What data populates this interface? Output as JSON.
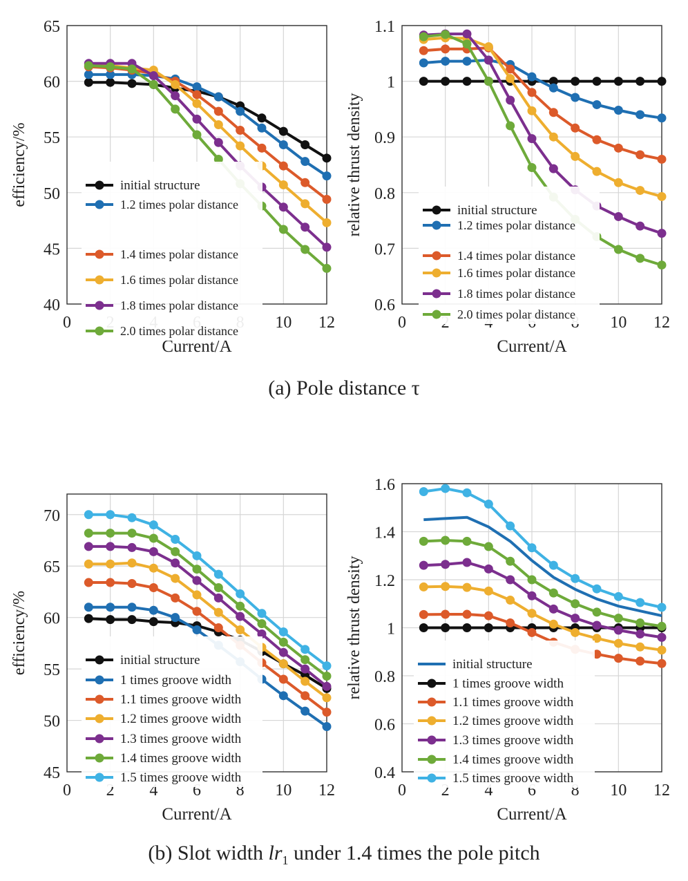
{
  "figure": {
    "caption_a": "(a) Pole distance τ",
    "caption_b_prefix": "(b) Slot width ",
    "caption_b_var": "lr",
    "caption_b_sub": "1",
    "caption_b_suffix": " under 1.4 times the pole pitch"
  },
  "colors": {
    "black": "#111111",
    "blue": "#1f6fb2",
    "orange": "#dc5a2a",
    "yellow": "#eeae2f",
    "purple": "#7c2f8e",
    "green": "#6eaa3a",
    "cyan": "#3fb2e4",
    "grid": "#d6d6d6",
    "axis": "#333333"
  },
  "chart_data": [
    {
      "type": "line",
      "panel": "a-left",
      "xlabel": "Current/A",
      "ylabel": "efficiency/%",
      "xlim": [
        0,
        12
      ],
      "ylim": [
        40,
        65
      ],
      "xticks": [
        0,
        2,
        4,
        6,
        8,
        10,
        12
      ],
      "yticks": [
        40,
        45,
        50,
        55,
        60,
        65
      ],
      "legend_position": "bottom-left",
      "x": [
        1,
        2,
        3,
        4,
        5,
        6,
        7,
        8,
        9,
        10,
        11,
        12
      ],
      "series": [
        {
          "name": "initial structure",
          "color": "black",
          "marker": true,
          "values": [
            59.9,
            59.9,
            59.8,
            59.7,
            59.4,
            59.1,
            58.6,
            57.8,
            56.7,
            55.5,
            54.3,
            53.1
          ]
        },
        {
          "name": "1.2 times polar distance",
          "color": "blue",
          "marker": true,
          "values": [
            60.6,
            60.6,
            60.6,
            60.5,
            60.2,
            59.5,
            58.6,
            57.3,
            55.8,
            54.3,
            52.8,
            51.5
          ]
        },
        {
          "name": "1.4 times polar distance",
          "color": "orange",
          "marker": true,
          "values": [
            61.3,
            61.2,
            61.0,
            60.7,
            60.0,
            58.8,
            57.3,
            55.6,
            54.0,
            52.4,
            50.9,
            49.4
          ]
        },
        {
          "name": "1.6 times polar distance",
          "color": "yellow",
          "marker": true,
          "values": [
            61.5,
            61.4,
            61.2,
            61.0,
            59.7,
            58.0,
            56.1,
            54.2,
            52.4,
            50.7,
            49.0,
            47.3
          ]
        },
        {
          "name": "1.8 times polar distance",
          "color": "purple",
          "marker": true,
          "values": [
            61.6,
            61.6,
            61.6,
            60.5,
            58.7,
            56.6,
            54.5,
            52.4,
            50.5,
            48.7,
            46.9,
            45.1
          ]
        },
        {
          "name": "2.0 times polar distance",
          "color": "green",
          "marker": true,
          "values": [
            61.4,
            61.3,
            61.1,
            59.7,
            57.5,
            55.2,
            53.0,
            50.8,
            48.8,
            46.7,
            44.9,
            43.2
          ]
        }
      ]
    },
    {
      "type": "line",
      "panel": "a-right",
      "xlabel": "Current/A",
      "ylabel": "relative thrust density",
      "xlim": [
        0,
        12
      ],
      "ylim": [
        0.6,
        1.1
      ],
      "xticks": [
        0,
        2,
        4,
        6,
        8,
        10,
        12
      ],
      "yticks": [
        0.6,
        0.7,
        0.8,
        0.9,
        1,
        1.1
      ],
      "legend_position": "bottom-left",
      "x": [
        1,
        2,
        3,
        4,
        5,
        6,
        7,
        8,
        9,
        10,
        11,
        12
      ],
      "series": [
        {
          "name": "initial structure",
          "color": "black",
          "marker": true,
          "values": [
            1.0,
            1.0,
            1.0,
            1.0,
            1.0,
            1.0,
            1.0,
            1.0,
            1.0,
            1.0,
            1.0,
            1.0
          ]
        },
        {
          "name": "1.2 times polar distance",
          "color": "blue",
          "marker": true,
          "values": [
            1.033,
            1.036,
            1.036,
            1.038,
            1.03,
            1.008,
            0.988,
            0.971,
            0.958,
            0.948,
            0.94,
            0.934
          ]
        },
        {
          "name": "1.4 times polar distance",
          "color": "orange",
          "marker": true,
          "values": [
            1.055,
            1.058,
            1.058,
            1.06,
            1.022,
            0.98,
            0.944,
            0.916,
            0.895,
            0.88,
            0.868,
            0.86
          ]
        },
        {
          "name": "1.6 times polar distance",
          "color": "yellow",
          "marker": true,
          "values": [
            1.075,
            1.078,
            1.077,
            1.062,
            1.005,
            0.947,
            0.9,
            0.865,
            0.838,
            0.818,
            0.804,
            0.793
          ]
        },
        {
          "name": "1.8 times polar distance",
          "color": "purple",
          "marker": true,
          "values": [
            1.083,
            1.085,
            1.085,
            1.038,
            0.966,
            0.897,
            0.843,
            0.805,
            0.776,
            0.757,
            0.74,
            0.727
          ]
        },
        {
          "name": "2.0 times polar distance",
          "color": "green",
          "marker": true,
          "values": [
            1.08,
            1.084,
            1.067,
            1.0,
            0.92,
            0.845,
            0.792,
            0.752,
            0.721,
            0.698,
            0.682,
            0.67
          ]
        }
      ]
    },
    {
      "type": "line",
      "panel": "b-left",
      "xlabel": "Current/A",
      "ylabel": "efficiency/%",
      "xlim": [
        0,
        12
      ],
      "ylim": [
        45,
        72
      ],
      "xticks": [
        0,
        2,
        4,
        6,
        8,
        10,
        12
      ],
      "yticks": [
        45,
        50,
        55,
        60,
        65,
        70
      ],
      "legend_position": "bottom-left",
      "x": [
        1,
        2,
        3,
        4,
        5,
        6,
        7,
        8,
        9,
        10,
        11,
        12
      ],
      "series": [
        {
          "name": "initial structure",
          "color": "black",
          "marker": true,
          "values": [
            59.9,
            59.8,
            59.8,
            59.6,
            59.5,
            59.2,
            58.6,
            57.8,
            56.7,
            55.5,
            54.4,
            53.1
          ]
        },
        {
          "name": "1 times groove width",
          "color": "blue",
          "marker": true,
          "values": [
            61.0,
            61.0,
            61.0,
            60.7,
            60.0,
            58.8,
            57.3,
            55.7,
            54.0,
            52.4,
            50.9,
            49.4
          ]
        },
        {
          "name": "1.1 times groove width",
          "color": "orange",
          "marker": true,
          "values": [
            63.4,
            63.4,
            63.3,
            62.9,
            61.9,
            60.6,
            59.0,
            57.3,
            55.6,
            54.0,
            52.4,
            50.8
          ]
        },
        {
          "name": "1.2 times groove width",
          "color": "yellow",
          "marker": true,
          "values": [
            65.2,
            65.2,
            65.3,
            64.8,
            63.8,
            62.2,
            60.5,
            58.8,
            57.1,
            55.5,
            53.8,
            52.2
          ]
        },
        {
          "name": "1.3 times groove width",
          "color": "purple",
          "marker": true,
          "values": [
            66.9,
            66.9,
            66.8,
            66.4,
            65.3,
            63.6,
            61.9,
            60.1,
            58.4,
            56.6,
            55.0,
            53.3
          ]
        },
        {
          "name": "1.4 times groove width",
          "color": "green",
          "marker": true,
          "values": [
            68.2,
            68.2,
            68.2,
            67.7,
            66.4,
            64.7,
            62.9,
            61.1,
            59.4,
            57.6,
            55.9,
            54.3
          ]
        },
        {
          "name": "1.5 times groove width",
          "color": "cyan",
          "marker": true,
          "values": [
            70.0,
            70.0,
            69.7,
            69.0,
            67.6,
            66.0,
            64.2,
            62.3,
            60.4,
            58.6,
            56.9,
            55.3
          ]
        }
      ]
    },
    {
      "type": "line",
      "panel": "b-right",
      "xlabel": "Current/A",
      "ylabel": "relative thrust density",
      "xlim": [
        0,
        12
      ],
      "ylim": [
        0.4,
        1.6
      ],
      "xticks": [
        0,
        2,
        4,
        6,
        8,
        10,
        12
      ],
      "yticks": [
        0.4,
        0.6,
        0.8,
        1,
        1.2,
        1.4,
        1.6
      ],
      "legend_position": "bottom-left",
      "x": [
        1,
        2,
        3,
        4,
        5,
        6,
        7,
        8,
        9,
        10,
        11,
        12
      ],
      "series": [
        {
          "name": "initial structure",
          "color": "blue",
          "marker": false,
          "values": [
            1.45,
            1.455,
            1.46,
            1.42,
            1.36,
            1.28,
            1.21,
            1.16,
            1.12,
            1.09,
            1.07,
            1.05
          ]
        },
        {
          "name": "1 times groove width",
          "color": "black",
          "marker": true,
          "values": [
            1.0,
            1.0,
            1.0,
            1.0,
            1.0,
            1.0,
            1.0,
            1.0,
            1.0,
            1.0,
            1.0,
            1.0
          ]
        },
        {
          "name": "1.1 times groove width",
          "color": "orange",
          "marker": true,
          "values": [
            1.055,
            1.056,
            1.056,
            1.05,
            1.02,
            0.98,
            0.94,
            0.91,
            0.89,
            0.873,
            0.861,
            0.851
          ]
        },
        {
          "name": "1.2 times groove width",
          "color": "yellow",
          "marker": true,
          "values": [
            1.17,
            1.172,
            1.168,
            1.153,
            1.115,
            1.06,
            1.015,
            0.98,
            0.956,
            0.935,
            0.92,
            0.907
          ]
        },
        {
          "name": "1.3 times groove width",
          "color": "purple",
          "marker": true,
          "values": [
            1.26,
            1.264,
            1.272,
            1.245,
            1.2,
            1.133,
            1.078,
            1.04,
            1.01,
            0.99,
            0.974,
            0.96
          ]
        },
        {
          "name": "1.4 times groove width",
          "color": "green",
          "marker": true,
          "values": [
            1.36,
            1.364,
            1.36,
            1.338,
            1.277,
            1.2,
            1.145,
            1.1,
            1.065,
            1.04,
            1.02,
            1.006
          ]
        },
        {
          "name": "1.5 times groove width",
          "color": "cyan",
          "marker": true,
          "values": [
            1.567,
            1.58,
            1.562,
            1.515,
            1.424,
            1.333,
            1.26,
            1.205,
            1.162,
            1.13,
            1.105,
            1.085
          ]
        }
      ]
    }
  ]
}
